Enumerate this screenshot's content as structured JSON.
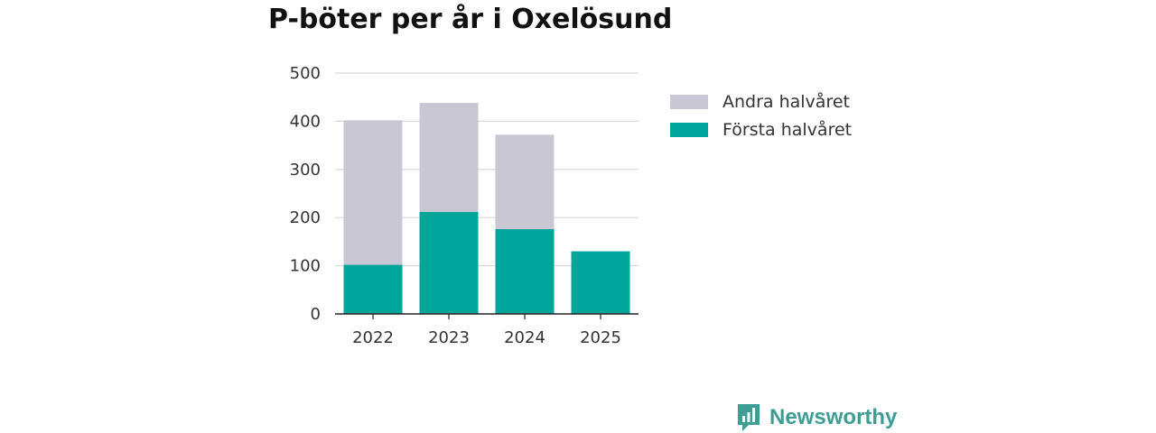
{
  "chart_data": {
    "type": "bar",
    "stacked": true,
    "title": "P-böter per år i Oxelösund",
    "categories": [
      "2022",
      "2023",
      "2024",
      "2025"
    ],
    "series": [
      {
        "name": "Första halvåret",
        "color": "#00a59a",
        "values": [
          102,
          212,
          176,
          130
        ]
      },
      {
        "name": "Andra halvåret",
        "color": "#c8c7d3",
        "values": [
          300,
          226,
          196,
          0
        ]
      }
    ],
    "ylim": [
      0,
      500
    ],
    "yticks": [
      0,
      100,
      200,
      300,
      400,
      500
    ],
    "grid": true,
    "legend_position": "right",
    "xlabel": "",
    "ylabel": ""
  },
  "legend": {
    "items": [
      {
        "label": "Andra halvåret",
        "color": "#c8c7d3"
      },
      {
        "label": "Första halvåret",
        "color": "#00a59a"
      }
    ]
  },
  "brand": {
    "name": "Newsworthy",
    "icon": "newsworthy-logo-icon",
    "color": "#3d9e94"
  }
}
